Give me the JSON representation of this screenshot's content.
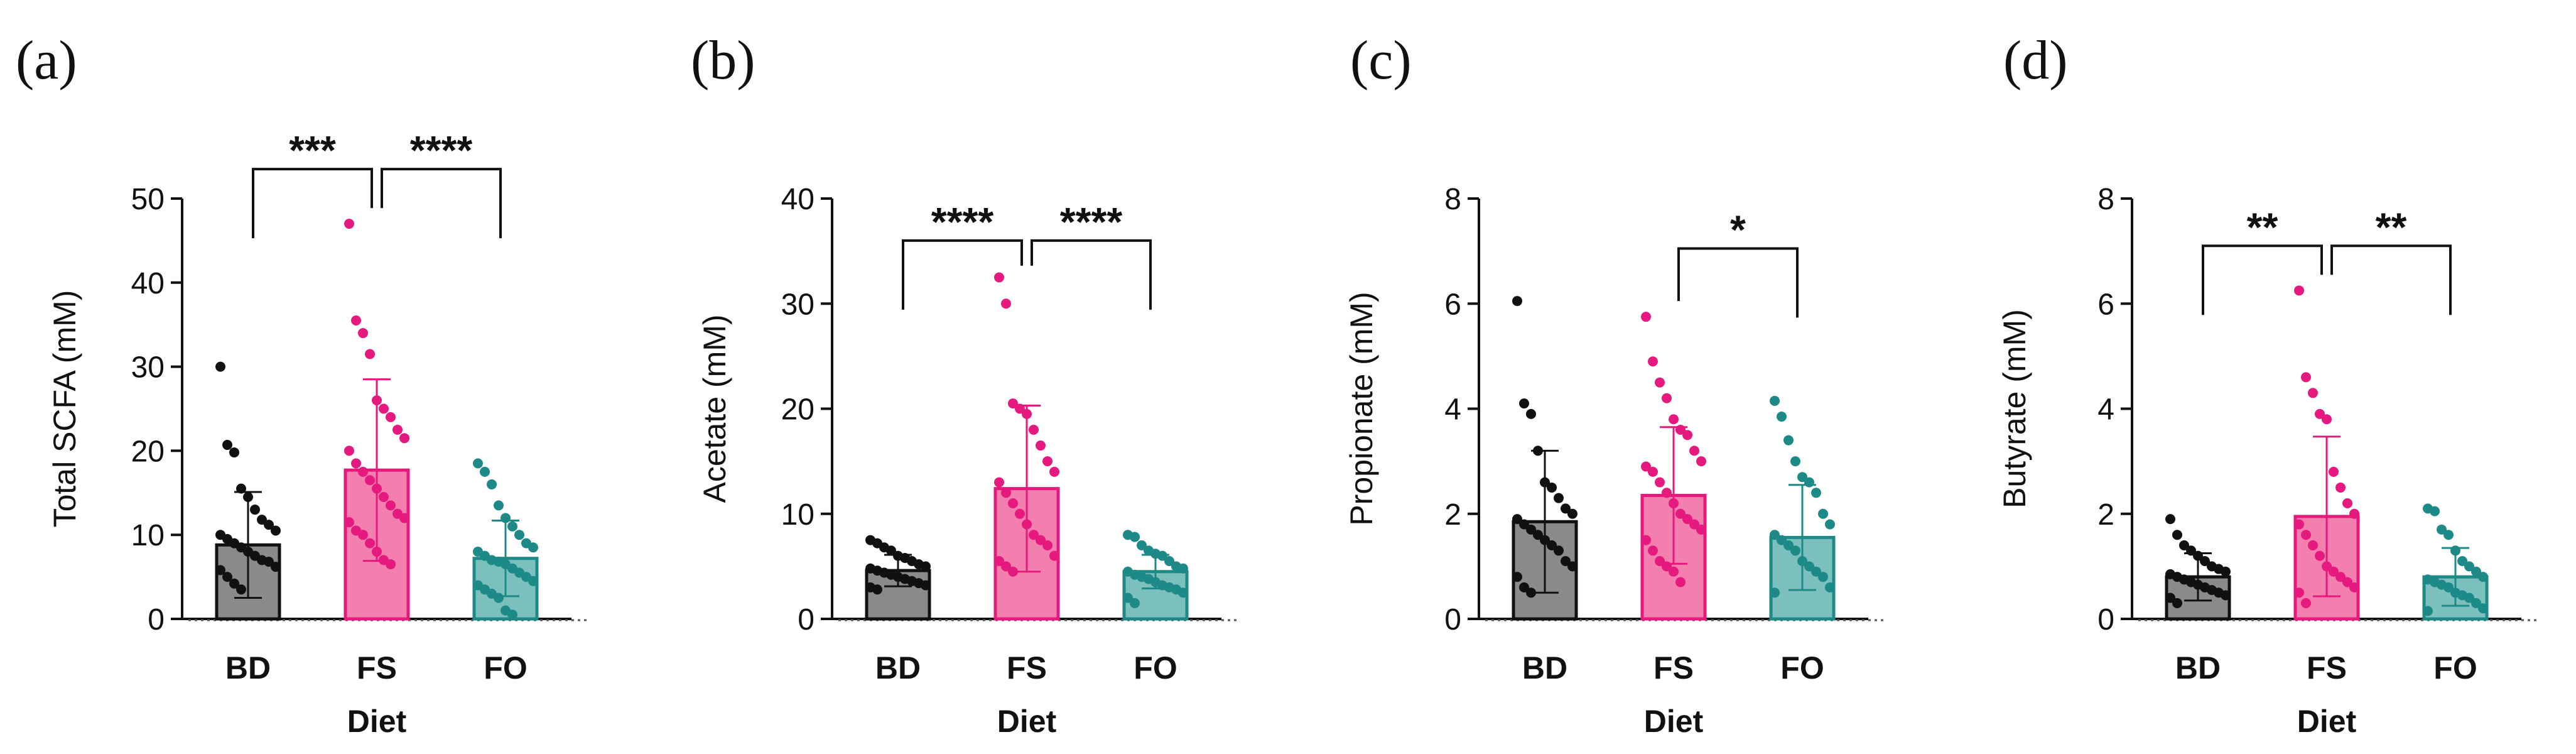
{
  "chart_data": [
    {
      "type": "bar",
      "panel": "(a)",
      "ylabel": "Total  SCFA (mM)",
      "xlabel": "Diet",
      "categories": [
        "BD",
        "FS",
        "FO"
      ],
      "ylim": [
        0,
        50
      ],
      "yticks": [
        0,
        10,
        20,
        30,
        40,
        50
      ],
      "series": [
        {
          "name": "mean",
          "values": [
            8.8,
            17.7,
            7.2
          ]
        }
      ],
      "sd": [
        6.3,
        10.8,
        4.5
      ],
      "points": [
        [
          30.0,
          20.7,
          19.8,
          15.5,
          14.5,
          13.0,
          11.8,
          11.2,
          10.5,
          10.0,
          9.5,
          9.0,
          8.5,
          8.0,
          7.5,
          7.0,
          6.8,
          6.2,
          5.8,
          5.0,
          4.2,
          3.5
        ],
        [
          47.0,
          35.5,
          34.0,
          31.5,
          26.0,
          25.0,
          24.0,
          22.5,
          21.5,
          20.0,
          18.5,
          17.5,
          16.5,
          15.5,
          14.5,
          13.5,
          12.5,
          12.0,
          11.5,
          10.5,
          10.0,
          9.0,
          8.0,
          7.0,
          6.5
        ],
        [
          18.5,
          17.5,
          16.0,
          13.5,
          12.0,
          11.0,
          10.0,
          9.0,
          8.5,
          8.0,
          7.5,
          7.0,
          6.8,
          6.5,
          6.0,
          5.5,
          5.0,
          4.5,
          4.0,
          3.5,
          3.0,
          2.5,
          1.0,
          0.5
        ]
      ],
      "significance": [
        {
          "from": 0,
          "to": 1,
          "label": "***",
          "y": 53.5
        },
        {
          "from": 1,
          "to": 2,
          "label": "****",
          "y": 53.5
        }
      ]
    },
    {
      "type": "bar",
      "panel": "(b)",
      "ylabel": "Acetate (mM)",
      "xlabel": "Diet",
      "categories": [
        "BD",
        "FS",
        "FO"
      ],
      "ylim": [
        0,
        40
      ],
      "yticks": [
        0,
        10,
        20,
        30,
        40
      ],
      "series": [
        {
          "name": "mean",
          "values": [
            4.6,
            12.4,
            4.5
          ]
        }
      ],
      "sd": [
        1.5,
        7.9,
        1.6
      ],
      "points": [
        [
          7.5,
          7.2,
          6.8,
          6.5,
          6.0,
          5.8,
          5.5,
          5.2,
          5.0,
          4.8,
          4.6,
          4.4,
          4.2,
          4.0,
          3.8,
          3.6,
          3.4,
          3.2,
          3.0,
          2.8
        ],
        [
          32.5,
          30.0,
          20.5,
          20.0,
          19.5,
          18.0,
          16.5,
          15.0,
          14.0,
          13.0,
          12.0,
          11.0,
          10.0,
          9.0,
          8.0,
          7.5,
          7.0,
          6.0,
          5.5,
          5.0,
          4.5
        ],
        [
          8.0,
          7.8,
          7.0,
          6.5,
          6.2,
          6.0,
          5.5,
          5.0,
          4.8,
          4.5,
          4.2,
          4.0,
          3.8,
          3.5,
          3.2,
          3.0,
          2.8,
          2.5,
          2.0,
          1.5
        ]
      ],
      "significance": [
        {
          "from": 0,
          "to": 1,
          "label": "****",
          "y": 36.0
        },
        {
          "from": 1,
          "to": 2,
          "label": "****",
          "y": 36.0
        }
      ]
    },
    {
      "type": "bar",
      "panel": "(c)",
      "ylabel": "Propionate (mM)",
      "xlabel": "Diet",
      "categories": [
        "BD",
        "FS",
        "FO"
      ],
      "ylim": [
        0,
        8
      ],
      "yticks": [
        0,
        2,
        4,
        6,
        8
      ],
      "series": [
        {
          "name": "mean",
          "values": [
            1.85,
            2.35,
            1.55
          ]
        }
      ],
      "sd": [
        1.35,
        1.3,
        1.0
      ],
      "points": [
        [
          6.05,
          4.1,
          3.9,
          3.2,
          2.6,
          2.5,
          2.3,
          2.1,
          2.0,
          1.9,
          1.8,
          1.7,
          1.6,
          1.5,
          1.4,
          1.3,
          1.1,
          1.0,
          0.8,
          0.6,
          0.5
        ],
        [
          5.75,
          4.9,
          4.5,
          4.2,
          3.8,
          3.6,
          3.5,
          3.2,
          3.0,
          2.9,
          2.8,
          2.6,
          2.4,
          2.2,
          2.0,
          1.9,
          1.8,
          1.7,
          1.5,
          1.3,
          1.1,
          1.0,
          0.9,
          0.7
        ],
        [
          4.15,
          3.85,
          3.4,
          3.0,
          2.7,
          2.6,
          2.4,
          2.0,
          1.8,
          1.6,
          1.5,
          1.4,
          1.3,
          1.1,
          1.0,
          0.9,
          0.8,
          0.6,
          0.5
        ]
      ],
      "significance": [
        {
          "from": 1,
          "to": 2,
          "label": "*",
          "y": 7.05
        }
      ]
    },
    {
      "type": "bar",
      "panel": "(d)",
      "ylabel": "Butyrate (mM)",
      "xlabel": "Diet",
      "categories": [
        "BD",
        "FS",
        "FO"
      ],
      "ylim": [
        0,
        8
      ],
      "yticks": [
        0,
        2,
        4,
        6,
        8
      ],
      "series": [
        {
          "name": "mean",
          "values": [
            0.8,
            1.95,
            0.8
          ]
        }
      ],
      "sd": [
        0.45,
        1.52,
        0.55
      ],
      "points": [
        [
          1.9,
          1.6,
          1.4,
          1.3,
          1.2,
          1.1,
          1.0,
          0.95,
          0.9,
          0.85,
          0.8,
          0.75,
          0.7,
          0.65,
          0.6,
          0.55,
          0.5,
          0.45,
          0.4,
          0.3
        ],
        [
          6.25,
          4.6,
          4.3,
          3.9,
          3.8,
          2.8,
          2.5,
          2.2,
          2.0,
          1.8,
          1.6,
          1.4,
          1.2,
          1.0,
          0.9,
          0.8,
          0.7,
          0.6,
          0.5,
          0.3
        ],
        [
          2.1,
          2.05,
          1.7,
          1.6,
          1.3,
          1.1,
          1.0,
          0.9,
          0.8,
          0.75,
          0.7,
          0.65,
          0.6,
          0.5,
          0.45,
          0.4,
          0.3,
          0.2,
          0.15
        ]
      ],
      "significance": [
        {
          "from": 0,
          "to": 1,
          "label": "**",
          "y": 7.1
        },
        {
          "from": 1,
          "to": 2,
          "label": "**",
          "y": 7.1
        }
      ]
    }
  ],
  "colors": {
    "bar_fills": [
      "#8a8a8a",
      "#f27fae",
      "#7cc0bd"
    ],
    "point_colors": [
      "#111111",
      "#e6197e",
      "#1e8a87"
    ],
    "axis": "#111111"
  }
}
